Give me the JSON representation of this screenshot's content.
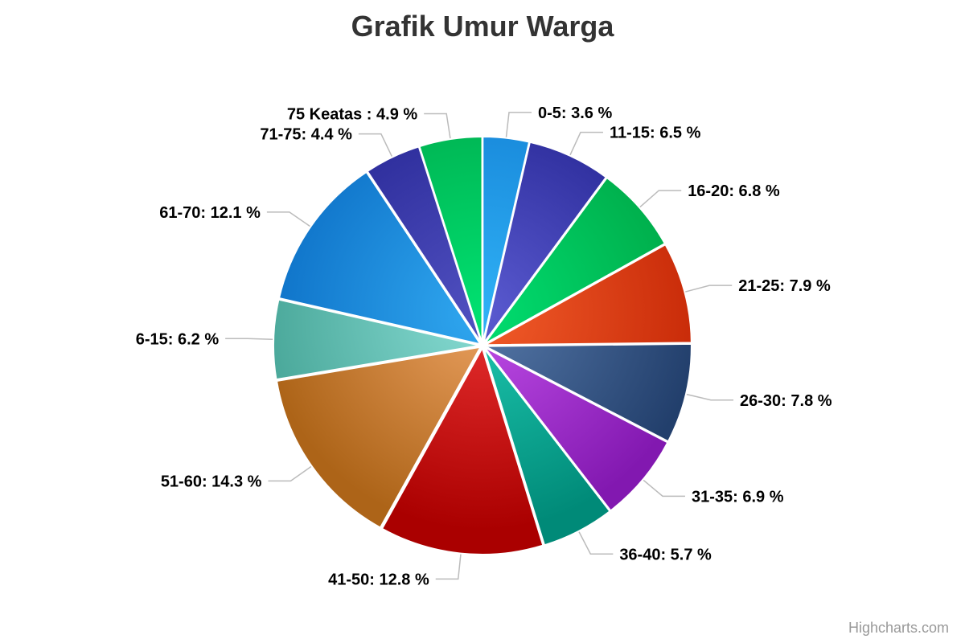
{
  "chart_data": {
    "type": "pie",
    "title": "Grafik Umur Warga",
    "unit": "%",
    "slices": [
      {
        "label": "0-5",
        "value": 3.6,
        "color_light": "#2fb0f5",
        "color_dark": "#1685d8"
      },
      {
        "label": "11-15",
        "value": 6.5,
        "color_light": "#5a5ad0",
        "color_dark": "#2a2a98"
      },
      {
        "label": "16-20",
        "value": 6.8,
        "color_light": "#00dd70",
        "color_dark": "#00aa48"
      },
      {
        "label": "21-25",
        "value": 7.9,
        "color_light": "#f25c2a",
        "color_dark": "#c82a08"
      },
      {
        "label": "26-30",
        "value": 7.8,
        "color_light": "#5678a8",
        "color_dark": "#223f6c"
      },
      {
        "label": "31-35",
        "value": 6.9,
        "color_light": "#c04ee8",
        "color_dark": "#8218b0"
      },
      {
        "label": "36-40",
        "value": 5.7,
        "color_light": "#1ec8b0",
        "color_dark": "#008a78"
      },
      {
        "label": "41-50",
        "value": 12.8,
        "color_light": "#e83030",
        "color_dark": "#aa0000"
      },
      {
        "label": "51-60",
        "value": 14.3,
        "color_light": "#eaa060",
        "color_dark": "#ad6418"
      },
      {
        "label": "6-15",
        "value": 6.2,
        "color_light": "#88dcd4",
        "color_dark": "#4aa89a"
      },
      {
        "label": "61-70",
        "value": 12.1,
        "color_light": "#30a8f0",
        "color_dark": "#0e72c8"
      },
      {
        "label": "71-75",
        "value": 4.4,
        "color_light": "#5050c0",
        "color_dark": "#2a2a98"
      },
      {
        "label": "75 Keatas ",
        "value": 4.9,
        "color_light": "#00e070",
        "color_dark": "#00b050"
      }
    ]
  },
  "credits": "Highcharts.com"
}
